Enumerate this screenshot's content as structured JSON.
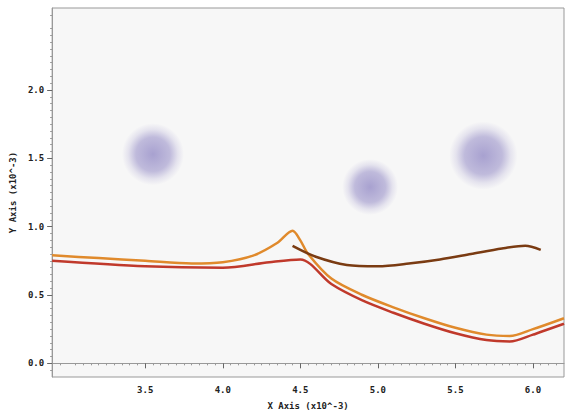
{
  "chart_data": {
    "type": "field",
    "xlabel": "X Axis (x10^-3)",
    "ylabel": "Y Axis (x10^-3)",
    "xlim": [
      2.9,
      6.2
    ],
    "xticks": [
      3.5,
      {
        "value": 4,
        "label": "4.0"
      },
      4.5,
      {
        "value": 5,
        "label": "5.0"
      },
      5.5,
      {
        "value": 6,
        "label": "6.0"
      }
    ],
    "ylim": [
      -0.1,
      2.6
    ],
    "yticks": [
      {
        "value": 0,
        "label": "0.0"
      },
      0.5,
      {
        "value": 1,
        "label": "1.0"
      },
      1.5,
      {
        "value": 2,
        "label": "2.0"
      }
    ],
    "grid": false,
    "series": [
      {
        "type": "vortex",
        "color": "#9a92c9",
        "x": [
          3.55,
          4.95,
          5.68
        ],
        "values": [
          1.53,
          1.29,
          1.52
        ],
        "radius": [
          0.2,
          0.18,
          0.22
        ]
      },
      {
        "type": "line",
        "color": "#e08a2c",
        "marker": "none",
        "line_style": "solid",
        "x": [
          2.9,
          3.2,
          3.5,
          3.8,
          4.0,
          4.2,
          4.35,
          4.45,
          4.5,
          4.55,
          4.7,
          4.9,
          5.1,
          5.3,
          5.5,
          5.7,
          5.85,
          6.0,
          6.2
        ],
        "values": [
          0.79,
          0.77,
          0.75,
          0.73,
          0.74,
          0.79,
          0.88,
          0.97,
          0.9,
          0.8,
          0.62,
          0.5,
          0.41,
          0.33,
          0.26,
          0.21,
          0.2,
          0.25,
          0.33
        ]
      },
      {
        "type": "line",
        "color": "#c0392b",
        "marker": "none",
        "line_style": "solid",
        "x": [
          2.9,
          3.5,
          4.0,
          4.3,
          4.5,
          4.7,
          4.9,
          5.1,
          5.3,
          5.5,
          5.7,
          5.85,
          6.0,
          6.2
        ],
        "values": [
          0.75,
          0.71,
          0.7,
          0.74,
          0.76,
          0.58,
          0.46,
          0.37,
          0.29,
          0.22,
          0.17,
          0.16,
          0.21,
          0.29
        ]
      },
      {
        "type": "line",
        "color": "#7a3b12",
        "marker": "none",
        "line_style": "solid",
        "x": [
          4.45,
          4.6,
          4.8,
          5.0,
          5.2,
          5.4,
          5.6,
          5.8,
          5.95,
          6.05
        ],
        "values": [
          0.86,
          0.78,
          0.72,
          0.71,
          0.73,
          0.76,
          0.8,
          0.84,
          0.86,
          0.83
        ]
      }
    ]
  }
}
